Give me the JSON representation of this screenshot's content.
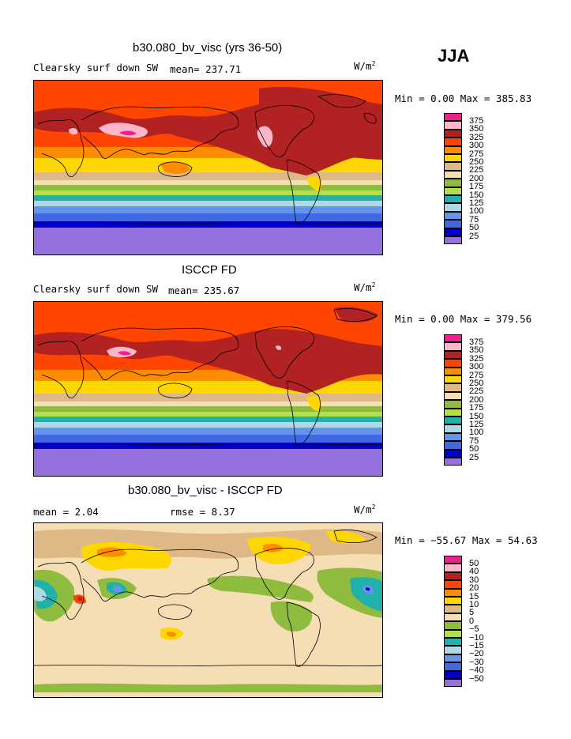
{
  "season_label": "JJA",
  "panels": [
    {
      "title": "b30.080_bv_visc (yrs 36-50)",
      "field": "Clearsky surf down SW",
      "stat_text": "mean= 237.71",
      "units_base": "W/m",
      "units_exp": "2",
      "minmax": "Min =   0.00 Max = 385.83",
      "levels": [
        "375",
        "350",
        "325",
        "300",
        "275",
        "250",
        "225",
        "200",
        "175",
        "150",
        "125",
        "100",
        "75",
        "50",
        "25"
      ],
      "colors": [
        "#ee1f8e",
        "#ffb6c8",
        "#b22222",
        "#ff4500",
        "#ff8c00",
        "#ffd700",
        "#deb887",
        "#f5deb3",
        "#8fbc3f",
        "#b0e04a",
        "#20b2aa",
        "#add8e6",
        "#6495ed",
        "#4169e1",
        "#0000cd",
        "#9370db"
      ]
    },
    {
      "title": "ISCCP FD",
      "field": "Clearsky surf down SW",
      "stat_text": "mean= 235.67",
      "units_base": "W/m",
      "units_exp": "2",
      "minmax": "Min =   0.00 Max = 379.56",
      "levels": [
        "375",
        "350",
        "325",
        "300",
        "275",
        "250",
        "225",
        "200",
        "175",
        "150",
        "125",
        "100",
        "75",
        "50",
        "25"
      ],
      "colors": [
        "#ee1f8e",
        "#ffb6c8",
        "#b22222",
        "#ff4500",
        "#ff8c00",
        "#ffd700",
        "#deb887",
        "#f5deb3",
        "#8fbc3f",
        "#b0e04a",
        "#20b2aa",
        "#add8e6",
        "#6495ed",
        "#4169e1",
        "#0000cd",
        "#9370db"
      ]
    },
    {
      "title": "b30.080_bv_visc - ISCCP FD",
      "field": "mean =    2.04",
      "stat_text": "rmse =    8.37",
      "units_base": "W/m",
      "units_exp": "2",
      "minmax": "Min = −55.67 Max =  54.63",
      "levels": [
        "50",
        "40",
        "30",
        "20",
        "15",
        "10",
        "5",
        "0",
        "−5",
        "−10",
        "−15",
        "−20",
        "−30",
        "−40",
        "−50"
      ],
      "colors": [
        "#ee1f8e",
        "#ffb6c8",
        "#b22222",
        "#ff4500",
        "#ff8c00",
        "#ffd700",
        "#deb887",
        "#f5deb3",
        "#8fbc3f",
        "#b0e04a",
        "#20b2aa",
        "#add8e6",
        "#6495ed",
        "#4169e1",
        "#0000cd",
        "#9370db"
      ]
    }
  ],
  "chart_data": [
    {
      "type": "heatmap",
      "title": "b30.080_bv_visc (yrs 36-50)",
      "subtitle": "Clearsky surf down SW",
      "mean": 237.71,
      "units": "W/m2",
      "min": 0.0,
      "max": 385.83,
      "contour_levels": [
        25,
        50,
        75,
        100,
        125,
        150,
        175,
        200,
        225,
        250,
        275,
        300,
        325,
        350,
        375
      ],
      "zonal_profile_lat_to_value": [
        [
          80,
          290
        ],
        [
          60,
          320
        ],
        [
          45,
          335
        ],
        [
          30,
          340
        ],
        [
          15,
          300
        ],
        [
          0,
          245
        ],
        [
          -15,
          215
        ],
        [
          -30,
          170
        ],
        [
          -45,
          110
        ],
        [
          -60,
          50
        ],
        [
          -75,
          5
        ]
      ]
    },
    {
      "type": "heatmap",
      "title": "ISCCP FD",
      "subtitle": "Clearsky surf down SW",
      "mean": 235.67,
      "units": "W/m2",
      "min": 0.0,
      "max": 379.56,
      "contour_levels": [
        25,
        50,
        75,
        100,
        125,
        150,
        175,
        200,
        225,
        250,
        275,
        300,
        325,
        350,
        375
      ],
      "zonal_profile_lat_to_value": [
        [
          80,
          285
        ],
        [
          60,
          315
        ],
        [
          45,
          332
        ],
        [
          30,
          338
        ],
        [
          15,
          298
        ],
        [
          0,
          248
        ],
        [
          -15,
          218
        ],
        [
          -30,
          172
        ],
        [
          -45,
          112
        ],
        [
          -60,
          52
        ],
        [
          -75,
          5
        ]
      ]
    },
    {
      "type": "heatmap",
      "title": "b30.080_bv_visc - ISCCP FD",
      "mean": 2.04,
      "rmse": 8.37,
      "units": "W/m2",
      "min": -55.67,
      "max": 54.63,
      "contour_levels": [
        -50,
        -40,
        -30,
        -20,
        -15,
        -10,
        -5,
        0,
        5,
        10,
        15,
        20,
        30,
        40,
        50
      ]
    }
  ]
}
